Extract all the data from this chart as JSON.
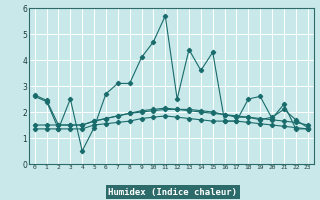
{
  "title": "",
  "xlabel": "Humidex (Indice chaleur)",
  "bg_color": "#c8e8ea",
  "grid_color": "#ffffff",
  "line_color": "#1a6b6b",
  "xlabel_bg": "#2d6b6b",
  "xlabel_fg": "#ffffff",
  "xlim": [
    -0.5,
    23.5
  ],
  "ylim": [
    0,
    6
  ],
  "xtick_labels": [
    "0",
    "1",
    "2",
    "3",
    "4",
    "5",
    "6",
    "7",
    "8",
    "9",
    "10",
    "11",
    "12",
    "13",
    "14",
    "15",
    "16",
    "17",
    "18",
    "19",
    "20",
    "21",
    "22",
    "23"
  ],
  "yticks": [
    0,
    1,
    2,
    3,
    4,
    5,
    6
  ],
  "series1": [
    2.6,
    2.4,
    1.35,
    2.5,
    0.5,
    1.4,
    2.7,
    3.1,
    3.1,
    4.1,
    4.7,
    5.7,
    2.5,
    4.4,
    3.6,
    4.3,
    1.65,
    1.65,
    2.5,
    2.6,
    1.75,
    2.3,
    1.35,
    1.35
  ],
  "series2": [
    1.35,
    1.35,
    1.35,
    1.35,
    1.35,
    1.5,
    1.55,
    1.6,
    1.65,
    1.75,
    1.8,
    1.85,
    1.8,
    1.75,
    1.7,
    1.65,
    1.65,
    1.65,
    1.6,
    1.55,
    1.5,
    1.45,
    1.4,
    1.35
  ],
  "series3": [
    1.5,
    1.5,
    1.5,
    1.5,
    1.5,
    1.65,
    1.75,
    1.85,
    1.95,
    2.0,
    2.05,
    2.1,
    2.1,
    2.05,
    2.0,
    1.95,
    1.9,
    1.85,
    1.8,
    1.75,
    1.7,
    1.65,
    1.6,
    1.5
  ],
  "series4": [
    2.65,
    2.45,
    1.5,
    1.5,
    1.5,
    1.65,
    1.75,
    1.85,
    1.95,
    2.05,
    2.1,
    2.15,
    2.1,
    2.1,
    2.05,
    2.0,
    1.9,
    1.8,
    1.8,
    1.7,
    1.8,
    2.1,
    1.7,
    1.4
  ]
}
